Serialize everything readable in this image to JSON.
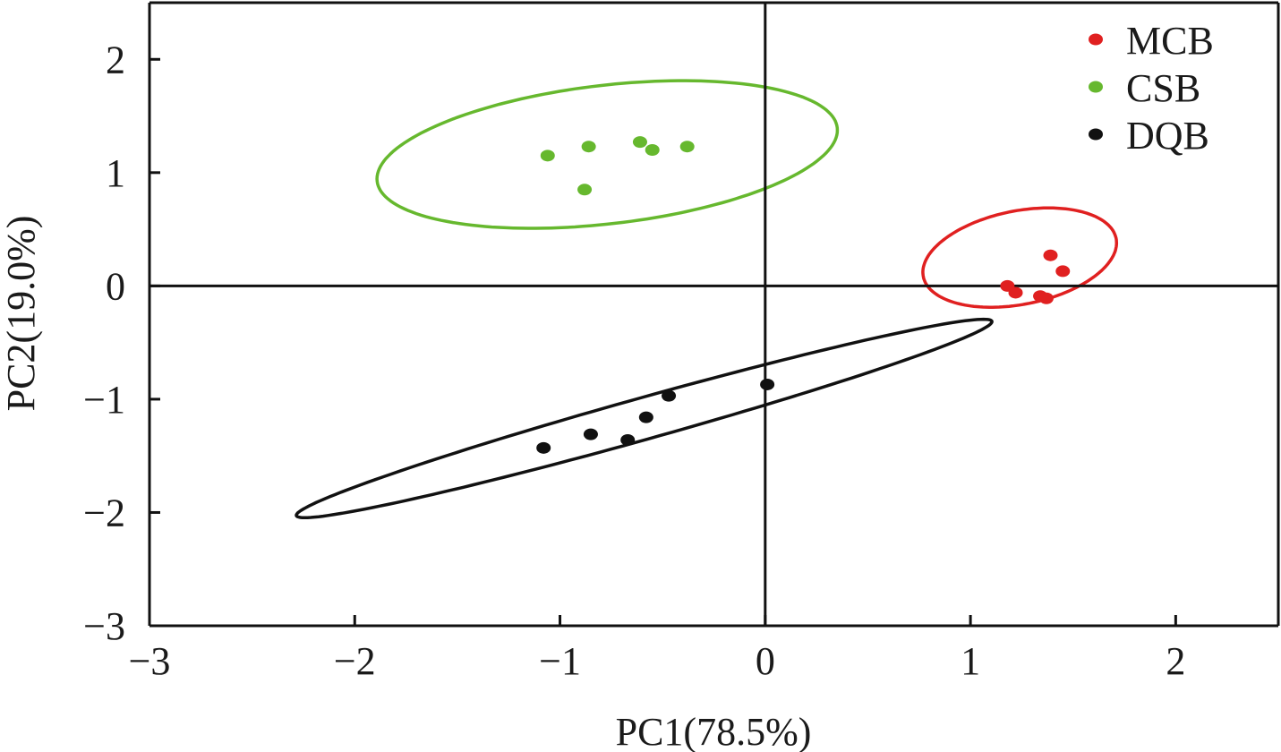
{
  "chart_data": {
    "type": "scatter",
    "xlabel": "PC1(78.5%)",
    "ylabel": "PC2(19.0%)",
    "xlim": [
      -3,
      2.5
    ],
    "ylim": [
      -3,
      2.5
    ],
    "xticks": [
      -3,
      -2,
      -1,
      0,
      1,
      2
    ],
    "yticks": [
      -3,
      -2,
      -1,
      0,
      1,
      2
    ],
    "xtick_labels": [
      "−3",
      "−2",
      "−1",
      "0",
      "1",
      "2"
    ],
    "ytick_labels": [
      "−3",
      "−2",
      "−1",
      "0",
      "1",
      "2"
    ],
    "legend_position": "top-right",
    "reference_lines": {
      "x": 0,
      "y": 0
    },
    "series": [
      {
        "name": "MCB",
        "color": "#e02020",
        "points": [
          [
            1.18,
            0.0
          ],
          [
            1.22,
            -0.06
          ],
          [
            1.34,
            -0.09
          ],
          [
            1.37,
            -0.11
          ],
          [
            1.39,
            0.27
          ],
          [
            1.45,
            0.13
          ]
        ],
        "ellipse": {
          "center": [
            1.24,
            0.25
          ],
          "semi_axes": [
            0.52,
            0.38
          ],
          "angle_deg": 38
        }
      },
      {
        "name": "CSB",
        "color": "#66b82e",
        "points": [
          [
            -1.06,
            1.15
          ],
          [
            -0.86,
            1.23
          ],
          [
            -0.88,
            0.85
          ],
          [
            -0.61,
            1.27
          ],
          [
            -0.55,
            1.2
          ],
          [
            -0.38,
            1.23
          ]
        ],
        "ellipse": {
          "center": [
            -0.77,
            1.16
          ],
          "semi_axes": [
            1.15,
            0.6
          ],
          "angle_deg": 15
        }
      },
      {
        "name": "DQB",
        "color": "#111111",
        "points": [
          [
            -1.08,
            -1.43
          ],
          [
            -0.85,
            -1.31
          ],
          [
            -0.67,
            -1.36
          ],
          [
            -0.58,
            -1.16
          ],
          [
            -0.47,
            -0.97
          ],
          [
            0.01,
            -0.87
          ]
        ],
        "ellipse": {
          "center": [
            -0.59,
            -1.17
          ],
          "semi_axes": [
            1.9,
            0.17
          ],
          "angle_deg": 27
        }
      }
    ]
  }
}
